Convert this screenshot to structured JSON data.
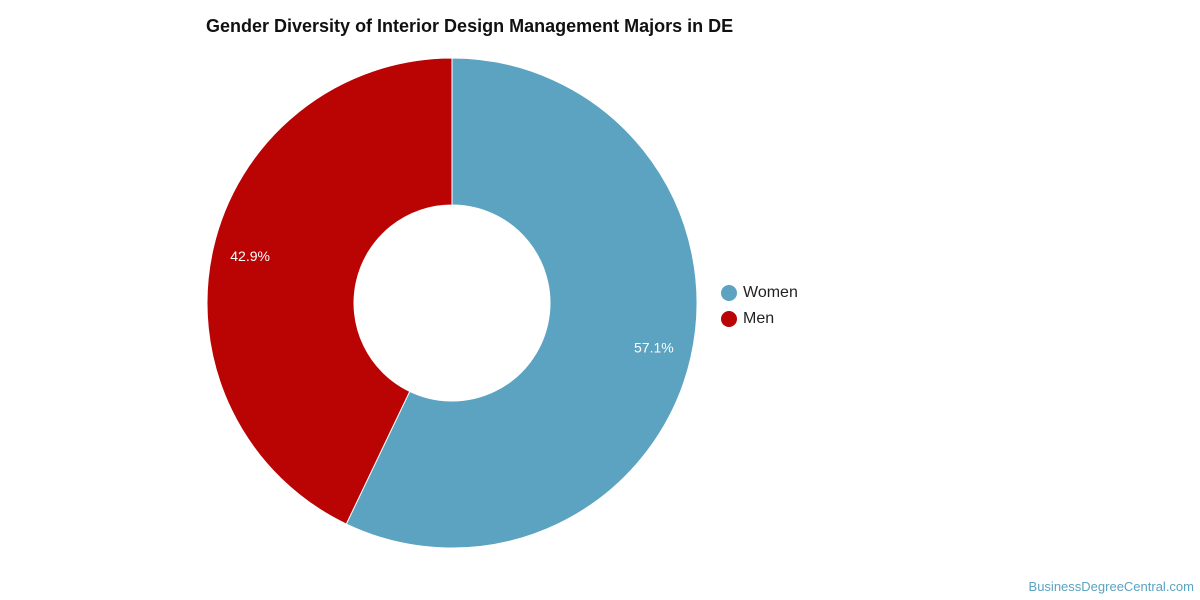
{
  "chart_data": {
    "type": "pie",
    "donut": true,
    "title": "Gender Diversity of Interior Design Management Majors in DE",
    "slices": [
      {
        "name": "Women",
        "value": 57.1,
        "label": "57.1%",
        "color": "#5ba3c0"
      },
      {
        "name": "Men",
        "value": 42.9,
        "label": "42.9%",
        "color": "#ba0303"
      }
    ],
    "legend_position": "right"
  },
  "legend": {
    "items": [
      {
        "label": "Women",
        "color": "#5ba3c0"
      },
      {
        "label": "Men",
        "color": "#ba0303"
      }
    ]
  },
  "footer": {
    "credit": "BusinessDegreeCentral.com"
  }
}
